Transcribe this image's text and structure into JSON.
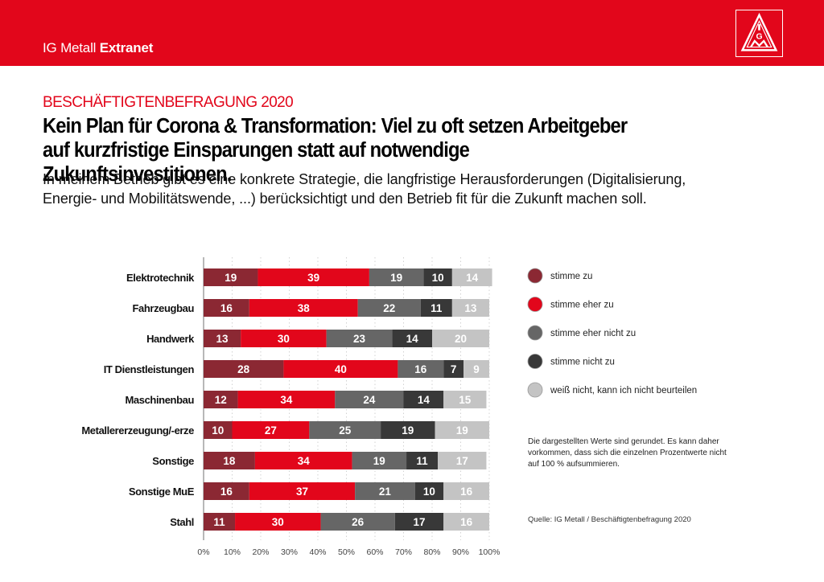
{
  "header": {
    "brand_regular": "IG Metall",
    "brand_bold": "Extranet",
    "logo": "igm-triangle-logo",
    "bar_color": "#e2061b"
  },
  "article": {
    "kicker": "BESCHÄFTIGTENBEFRAGUNG 2020",
    "headline_line1": "Kein Plan für Corona & Transformation: Viel zu oft setzen Arbeitgeber",
    "headline_line2": "auf kurzfristige Einsparungen statt auf notwendige Zukunftsinvestitionen.",
    "question": "In meinem Betrieb gibt es eine konkrete Strategie, die langfristige Herausforderungen (Digitalisierung, Energie- und Mobilitätswende, ...) berücksichtigt und den Betrieb fit für die Zukunft machen soll."
  },
  "note": "Die dargestellten Werte sind gerundet. Es kann daher vorkommen, dass sich die einzelnen Prozentwerte nicht auf 100 % aufsummieren.",
  "source": "Quelle: IG Metall / Beschäftigtenbefragung 2020",
  "chart_data": {
    "type": "bar",
    "orientation": "horizontal",
    "stacked": true,
    "title": "In meinem Betrieb gibt es eine konkrete Strategie, die langfristige Herausforderungen berücksichtigt und den Betrieb fit für die Zukunft machen soll.",
    "xlabel": "",
    "ylabel": "",
    "xlim": [
      0,
      100
    ],
    "x_ticks": [
      "0%",
      "10%",
      "20%",
      "30%",
      "40%",
      "50%",
      "60%",
      "70%",
      "80%",
      "90%",
      "100%"
    ],
    "grid": "vertical dotted",
    "legend_position": "right",
    "categories": [
      "Elektrotechnik",
      "Fahrzeugbau",
      "Handwerk",
      "IT Dienstleistungen",
      "Maschinenbau",
      "Metallererzeugung/-erze",
      "Sonstige",
      "Sonstige MuE",
      "Stahl"
    ],
    "series": [
      {
        "name": "stimme zu",
        "color": "#8b2833",
        "values": [
          19,
          16,
          13,
          28,
          12,
          10,
          18,
          16,
          11
        ]
      },
      {
        "name": "stimme eher zu",
        "color": "#e2061b",
        "values": [
          39,
          38,
          30,
          40,
          34,
          27,
          34,
          37,
          30
        ]
      },
      {
        "name": "stimme eher nicht zu",
        "color": "#666666",
        "values": [
          19,
          22,
          23,
          16,
          24,
          25,
          19,
          21,
          26
        ]
      },
      {
        "name": "stimme nicht zu",
        "color": "#383838",
        "values": [
          10,
          11,
          14,
          7,
          14,
          19,
          11,
          10,
          17
        ]
      },
      {
        "name": "weiß nicht, kann ich nicht beurteilen",
        "color": "#c4c4c4",
        "values": [
          14,
          13,
          20,
          9,
          15,
          19,
          17,
          16,
          16
        ]
      }
    ]
  }
}
